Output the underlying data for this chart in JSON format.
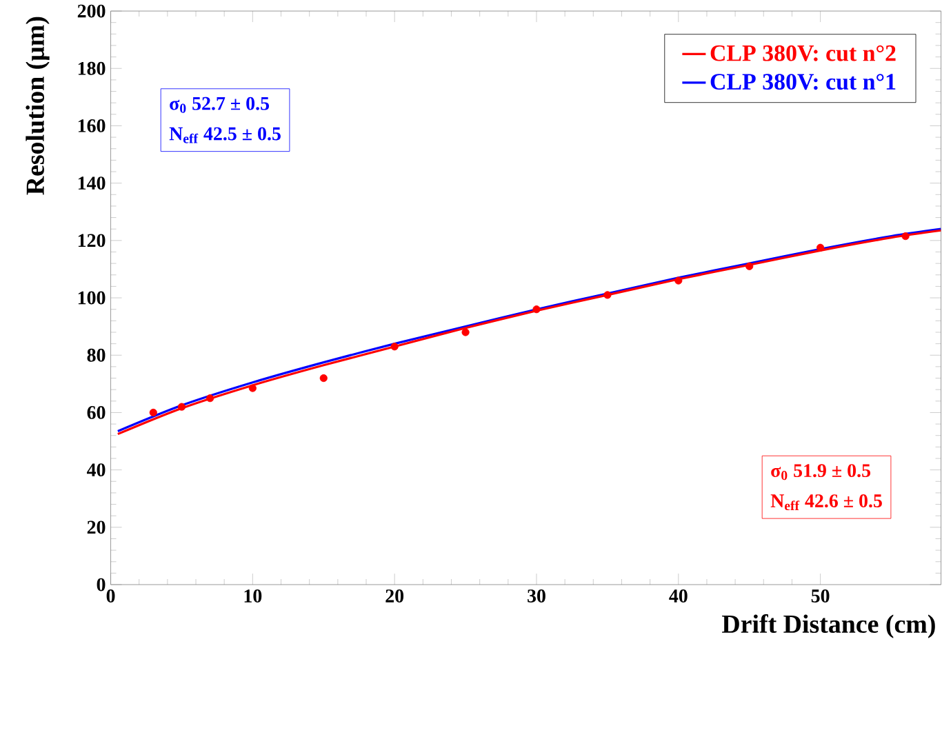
{
  "chart_data": {
    "type": "scatter",
    "xlabel": "Drift Distance (cm)",
    "ylabel": "Resolution (μm)",
    "xlim": [
      0,
      58.5
    ],
    "ylim": [
      0,
      200
    ],
    "xticks": [
      0,
      10,
      20,
      30,
      40,
      50
    ],
    "yticks": [
      0,
      20,
      40,
      60,
      80,
      100,
      120,
      140,
      160,
      180,
      200
    ],
    "grid": false,
    "legend": "top right",
    "series": [
      {
        "type": "line",
        "name": "CLP 380V: cut n°2",
        "color": "#ff0000",
        "x": [
          0.5,
          5,
          10,
          15,
          20,
          25,
          30,
          35,
          40,
          45,
          50,
          55,
          58.5
        ],
        "values": [
          52.5,
          61.5,
          69.5,
          76.5,
          83,
          89.5,
          95.5,
          101,
          106.5,
          111.5,
          116.5,
          121,
          123.5
        ]
      },
      {
        "type": "line",
        "name": "CLP 380V: cut n°1",
        "color": "#0000ff",
        "x": [
          0.5,
          5,
          10,
          15,
          20,
          25,
          30,
          35,
          40,
          45,
          50,
          55,
          58.5
        ],
        "values": [
          53.5,
          62.5,
          70.5,
          77.5,
          84,
          90,
          96,
          101.5,
          107,
          112,
          117,
          121.5,
          124
        ]
      },
      {
        "marker": "circle",
        "color": "#ff0000",
        "x": [
          3,
          5,
          7,
          10,
          15,
          20,
          25,
          30,
          35,
          40,
          45,
          50,
          56
        ],
        "values": [
          60,
          62,
          65,
          68.5,
          72,
          83,
          88,
          96,
          101,
          106,
          111,
          117.5,
          121.5
        ]
      }
    ],
    "annotations": [
      "σ$_{0}$   52.7 ± 0.5",
      "N$_{eff}$   42.5 ± 0.5",
      "σ$_{0}$   51.9 ± 0.5",
      "N$_{eff}$   42.6 ± 0.5"
    ]
  }
}
